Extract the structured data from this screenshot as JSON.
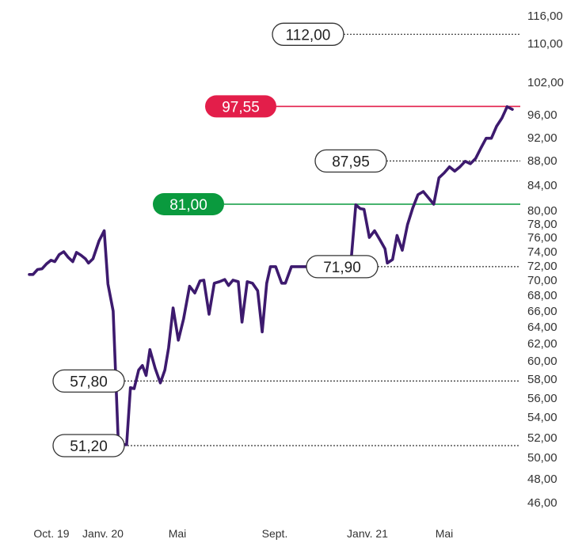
{
  "chart_data": {
    "type": "line",
    "title": "",
    "xlabel": "",
    "ylabel": "",
    "y_ticks": [
      "116,00",
      "110,00",
      "102,00",
      "96,00",
      "92,00",
      "88,00",
      "84,00",
      "80,00",
      "78,00",
      "76,00",
      "74,00",
      "72,00",
      "70,00",
      "68,00",
      "66,00",
      "64,00",
      "62,00",
      "60,00",
      "58,00",
      "56,00",
      "54,00",
      "52,00",
      "50,00",
      "48,00",
      "46,00"
    ],
    "x_ticks": [
      "Oct. 19",
      "Janv. 20",
      "Mai",
      "Sept.",
      "Janv. 21",
      "Mai"
    ],
    "scale": "nonlinear (compressed at top)",
    "grid": false,
    "line_color": "#3d1a6e",
    "series": [
      {
        "values": [
          [
            "2019-10-01",
            70.8
          ],
          [
            "2019-10-06",
            70.8
          ],
          [
            "2019-10-12",
            71.5
          ],
          [
            "2019-10-18",
            71.6
          ],
          [
            "2019-10-24",
            72.3
          ],
          [
            "2019-10-30",
            72.8
          ],
          [
            "2019-11-04",
            72.6
          ],
          [
            "2019-11-10",
            73.6
          ],
          [
            "2019-11-16",
            74.0
          ],
          [
            "2019-11-22",
            73.2
          ],
          [
            "2019-11-28",
            72.6
          ],
          [
            "2019-12-03",
            73.9
          ],
          [
            "2019-12-09",
            73.5
          ],
          [
            "2019-12-15",
            73.0
          ],
          [
            "2019-12-19",
            72.4
          ],
          [
            "2019-12-25",
            73.0
          ],
          [
            "2020-01-02",
            75.5
          ],
          [
            "2020-01-09",
            77.0
          ],
          [
            "2020-01-14",
            69.5
          ],
          [
            "2020-01-21",
            66.0
          ],
          [
            "2020-01-28",
            51.3
          ],
          [
            "2020-02-03",
            51.3
          ],
          [
            "2020-02-08",
            51.3
          ],
          [
            "2020-02-13",
            57.1
          ],
          [
            "2020-02-18",
            57.0
          ],
          [
            "2020-02-24",
            59.0
          ],
          [
            "2020-02-29",
            59.5
          ],
          [
            "2020-03-05",
            58.4
          ],
          [
            "2020-03-10",
            61.3
          ],
          [
            "2020-03-17",
            59.2
          ],
          [
            "2020-03-24",
            57.6
          ],
          [
            "2020-03-30",
            59.0
          ],
          [
            "2020-04-04",
            61.5
          ],
          [
            "2020-04-10",
            66.4
          ],
          [
            "2020-04-17",
            62.4
          ],
          [
            "2020-04-24",
            65.0
          ],
          [
            "2020-05-02",
            69.2
          ],
          [
            "2020-05-09",
            68.3
          ],
          [
            "2020-05-16",
            69.9
          ],
          [
            "2020-05-21",
            70.0
          ],
          [
            "2020-05-28",
            65.6
          ],
          [
            "2020-06-04",
            69.6
          ],
          [
            "2020-06-11",
            69.8
          ],
          [
            "2020-06-18",
            70.1
          ],
          [
            "2020-06-23",
            69.3
          ],
          [
            "2020-06-29",
            70.0
          ],
          [
            "2020-07-06",
            69.8
          ],
          [
            "2020-07-11",
            64.6
          ],
          [
            "2020-07-18",
            69.8
          ],
          [
            "2020-07-25",
            69.6
          ],
          [
            "2020-08-01",
            68.6
          ],
          [
            "2020-08-07",
            63.4
          ],
          [
            "2020-08-13",
            69.6
          ],
          [
            "2020-08-18",
            71.9
          ],
          [
            "2020-08-25",
            71.9
          ],
          [
            "2020-09-02",
            69.6
          ],
          [
            "2020-09-07",
            69.6
          ],
          [
            "2020-09-15",
            71.9
          ],
          [
            "2020-10-02",
            71.9
          ],
          [
            "2020-10-07",
            71.9
          ],
          [
            "2020-12-03",
            71.9
          ],
          [
            "2020-12-10",
            80.9
          ],
          [
            "2020-12-16",
            80.3
          ],
          [
            "2020-12-21",
            80.2
          ],
          [
            "2020-12-28",
            76.0
          ],
          [
            "2021-01-04",
            77.0
          ],
          [
            "2021-01-11",
            75.7
          ],
          [
            "2021-01-18",
            74.4
          ],
          [
            "2021-01-21",
            72.4
          ],
          [
            "2021-01-28",
            72.9
          ],
          [
            "2021-02-03",
            76.3
          ],
          [
            "2021-02-10",
            74.2
          ],
          [
            "2021-02-17",
            77.9
          ],
          [
            "2021-02-24",
            80.4
          ],
          [
            "2021-03-03",
            82.5
          ],
          [
            "2021-03-10",
            83.0
          ],
          [
            "2021-03-17",
            82.0
          ],
          [
            "2021-03-24",
            81.0
          ],
          [
            "2021-03-31",
            85.2
          ],
          [
            "2021-04-07",
            86.0
          ],
          [
            "2021-04-14",
            87.0
          ],
          [
            "2021-04-21",
            86.3
          ],
          [
            "2021-04-28",
            87.0
          ],
          [
            "2021-05-05",
            87.9
          ],
          [
            "2021-05-12",
            87.5
          ],
          [
            "2021-05-19",
            88.4
          ],
          [
            "2021-05-26",
            90.2
          ],
          [
            "2021-06-02",
            91.9
          ],
          [
            "2021-06-09",
            91.9
          ],
          [
            "2021-06-16",
            94.0
          ],
          [
            "2021-06-23",
            95.4
          ],
          [
            "2021-06-30",
            97.5
          ],
          [
            "2021-07-07",
            97.0
          ]
        ]
      }
    ],
    "annotations": [
      {
        "label": "112,00",
        "value": 112,
        "style": "outline",
        "line": "dotted",
        "line_color": "#333333"
      },
      {
        "label": "97,55",
        "value": 97.55,
        "style": "filled",
        "fill": "#e31e4a",
        "line": "solid",
        "line_color": "#e31e4a"
      },
      {
        "label": "87,95",
        "value": 87.95,
        "style": "outline",
        "line": "dotted",
        "line_color": "#333333"
      },
      {
        "label": "81,00",
        "value": 81,
        "style": "filled",
        "fill": "#0a9a3e",
        "line": "solid",
        "line_color": "#0a9a3e"
      },
      {
        "label": "71,90",
        "value": 71.9,
        "style": "outline",
        "line": "dotted",
        "line_color": "#333333"
      },
      {
        "label": "57,80",
        "value": 57.8,
        "style": "outline",
        "line": "dotted",
        "line_color": "#333333"
      },
      {
        "label": "51,20",
        "value": 51.2,
        "style": "outline",
        "line": "dotted",
        "line_color": "#333333"
      }
    ]
  }
}
